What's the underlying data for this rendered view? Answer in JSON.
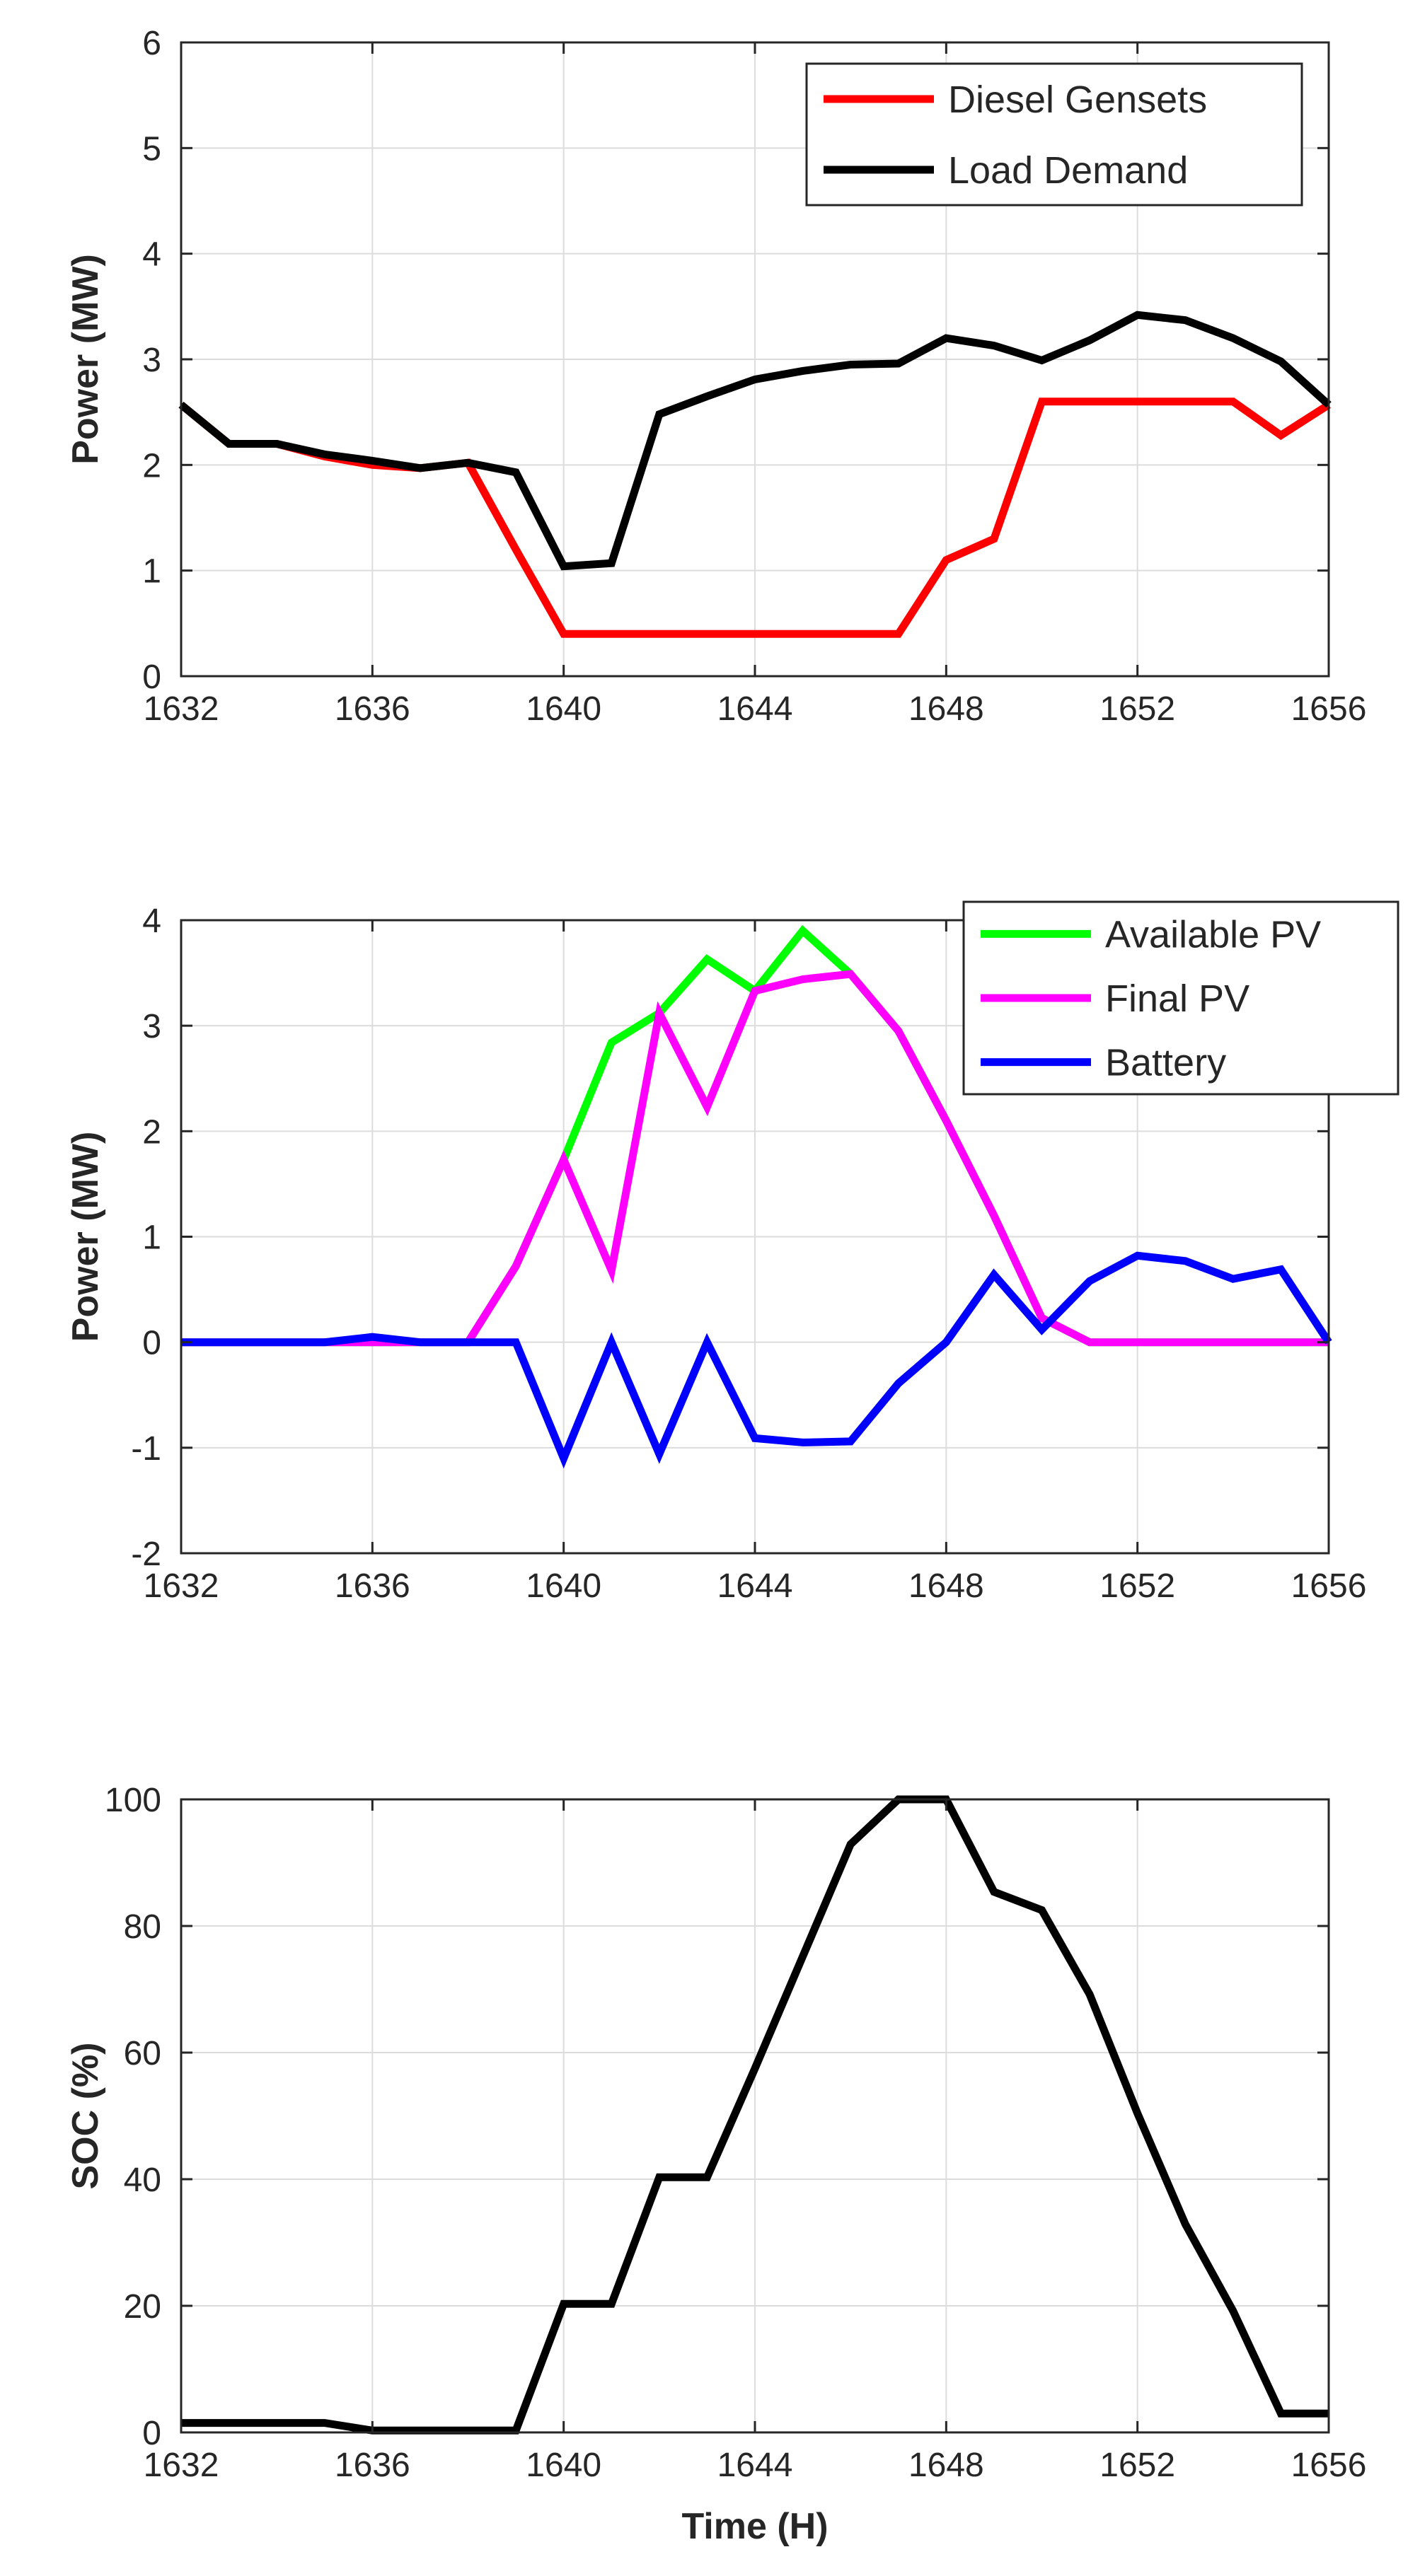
{
  "chart_data": [
    {
      "type": "line",
      "xlim": [
        1632,
        1656
      ],
      "ylim": [
        0,
        6
      ],
      "xticks": [
        1632,
        1636,
        1640,
        1644,
        1648,
        1652,
        1656
      ],
      "yticks": [
        0,
        1,
        2,
        3,
        4,
        5,
        6
      ],
      "xlabel": "",
      "ylabel": "Power (MW)",
      "grid": true,
      "legend": "top-right",
      "x": [
        1632,
        1633,
        1634,
        1635,
        1636,
        1637,
        1638,
        1639,
        1640,
        1641,
        1642,
        1643,
        1644,
        1645,
        1646,
        1647,
        1648,
        1649,
        1650,
        1651,
        1652,
        1653,
        1654,
        1655,
        1656
      ],
      "series": [
        {
          "name": "Diesel Gensets",
          "color": "#ff0000",
          "values": [
            2.57,
            2.2,
            2.2,
            2.08,
            2.0,
            1.97,
            2.02,
            1.2,
            0.4,
            0.4,
            0.4,
            0.4,
            0.4,
            0.4,
            0.4,
            0.4,
            1.1,
            1.3,
            2.6,
            2.6,
            2.6,
            2.6,
            2.6,
            2.28,
            2.57
          ]
        },
        {
          "name": "Load Demand",
          "color": "#000000",
          "values": [
            2.57,
            2.2,
            2.2,
            2.1,
            2.04,
            1.97,
            2.02,
            1.93,
            1.04,
            1.07,
            2.48,
            2.65,
            2.81,
            2.89,
            2.95,
            2.96,
            3.2,
            3.13,
            2.99,
            3.18,
            3.42,
            3.37,
            3.2,
            2.98,
            2.57
          ]
        }
      ]
    },
    {
      "type": "line",
      "xlim": [
        1632,
        1656
      ],
      "ylim": [
        -2,
        4
      ],
      "xticks": [
        1632,
        1636,
        1640,
        1644,
        1648,
        1652,
        1656
      ],
      "yticks": [
        -2,
        -1,
        0,
        1,
        2,
        3,
        4
      ],
      "xlabel": "",
      "ylabel": "Power (MW)",
      "grid": true,
      "legend": "top-right",
      "x": [
        1632,
        1633,
        1634,
        1635,
        1636,
        1637,
        1638,
        1639,
        1640,
        1641,
        1642,
        1643,
        1644,
        1645,
        1646,
        1647,
        1648,
        1649,
        1650,
        1651,
        1652,
        1653,
        1654,
        1655,
        1656
      ],
      "series": [
        {
          "name": "Available PV",
          "color": "#00ff00",
          "values": [
            0,
            0,
            0,
            0,
            0,
            0,
            0,
            0.72,
            1.73,
            2.84,
            3.12,
            3.63,
            3.33,
            3.9,
            3.49,
            2.95,
            2.1,
            1.2,
            0.23,
            0,
            0,
            0,
            0,
            0,
            0
          ]
        },
        {
          "name": "Final PV",
          "color": "#ff00ff",
          "values": [
            0,
            0,
            0,
            0,
            0,
            0,
            0,
            0.72,
            1.73,
            0.68,
            3.12,
            2.23,
            3.33,
            3.44,
            3.49,
            2.95,
            2.1,
            1.2,
            0.23,
            0,
            0,
            0,
            0,
            0,
            0
          ]
        },
        {
          "name": "Battery",
          "color": "#0000ff",
          "values": [
            0,
            0,
            0,
            0,
            0.05,
            0,
            0,
            0,
            -1.1,
            0,
            -1.06,
            0,
            -0.91,
            -0.95,
            -0.94,
            -0.39,
            0,
            0.64,
            0.12,
            0.58,
            0.82,
            0.77,
            0.6,
            0.69,
            0
          ]
        }
      ]
    },
    {
      "type": "line",
      "xlim": [
        1632,
        1656
      ],
      "ylim": [
        0,
        100
      ],
      "xticks": [
        1632,
        1636,
        1640,
        1644,
        1648,
        1652,
        1656
      ],
      "yticks": [
        0,
        20,
        40,
        60,
        80,
        100
      ],
      "xlabel": "Time (H)",
      "ylabel": "SOC (%)",
      "grid": true,
      "x": [
        1632,
        1633,
        1634,
        1635,
        1636,
        1637,
        1638,
        1639,
        1640,
        1641,
        1642,
        1643,
        1644,
        1645,
        1646,
        1647,
        1648,
        1649,
        1650,
        1651,
        1652,
        1653,
        1654,
        1655,
        1656
      ],
      "series": [
        {
          "name": "SOC",
          "color": "#000000",
          "values": [
            1.5,
            1.5,
            1.5,
            1.5,
            0.3,
            0.3,
            0.3,
            0.3,
            20.3,
            20.3,
            40.3,
            40.3,
            57.5,
            75.2,
            92.9,
            100,
            100,
            85.4,
            82.5,
            69.2,
            50.4,
            32.9,
            19.2,
            3.0,
            3.0
          ]
        }
      ]
    }
  ]
}
